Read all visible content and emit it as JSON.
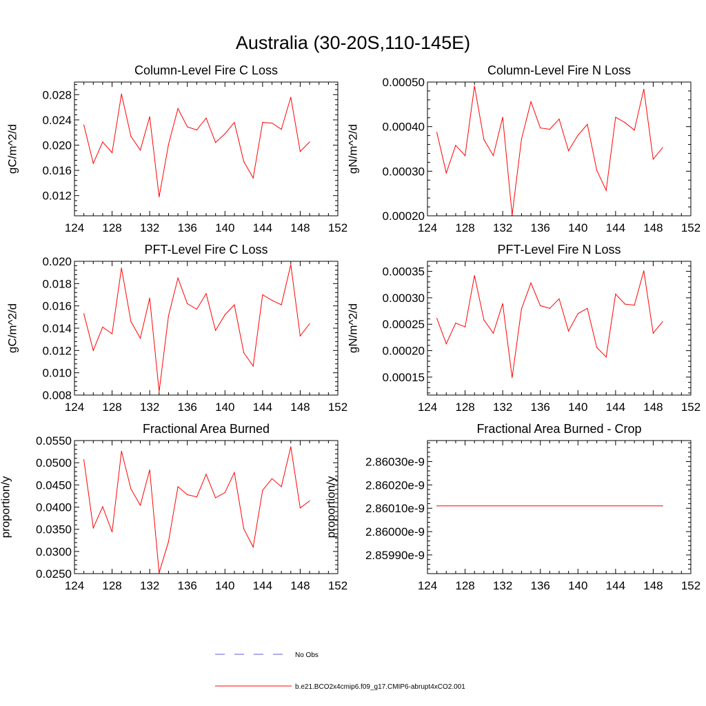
{
  "figure": {
    "title": "Australia (30-20S,110-145E)"
  },
  "legend": {
    "entries": [
      {
        "label": "No Obs",
        "color": "#5b5bd6",
        "style": "dashed"
      },
      {
        "label": "b.e21.BCO2x4cmip6.f09_g17.CMIP6-abrupt4xCO2.001",
        "color": "#ff0000",
        "style": "solid"
      }
    ]
  },
  "chart_data": [
    {
      "type": "line",
      "title": "Column-Level Fire C Loss",
      "ylabel": "gC/m^2/d",
      "xlim": [
        124,
        152
      ],
      "ylim": [
        0.0088,
        0.03
      ],
      "xticks": [
        124,
        128,
        132,
        136,
        140,
        144,
        148,
        152
      ],
      "xtick_labels": [
        "124",
        "128",
        "132",
        "136",
        "140",
        "144",
        "148",
        "152"
      ],
      "yticks": [
        0.012,
        0.016,
        0.02,
        0.024,
        0.028
      ],
      "ytick_labels": [
        "0.012",
        "0.016",
        "0.020",
        "0.024",
        "0.028"
      ],
      "series": [
        {
          "name": "b.e21.BCO2x4cmip6.f09_g17.CMIP6-abrupt4xCO2.001",
          "color": "#ff0000",
          "x": [
            125,
            126,
            127,
            128,
            129,
            130,
            131,
            132,
            133,
            134,
            135,
            136,
            137,
            138,
            139,
            140,
            141,
            142,
            143,
            144,
            145,
            146,
            147,
            148,
            149
          ],
          "values": [
            0.0232,
            0.0171,
            0.0205,
            0.0188,
            0.0281,
            0.0214,
            0.0192,
            0.0245,
            0.0118,
            0.0201,
            0.0258,
            0.0229,
            0.0224,
            0.0243,
            0.0204,
            0.0218,
            0.0236,
            0.0174,
            0.0148,
            0.0236,
            0.0235,
            0.0225,
            0.0276,
            0.019,
            0.0205
          ]
        }
      ]
    },
    {
      "type": "line",
      "title": "Column-Level Fire N Loss",
      "ylabel": "gN/m^2/d",
      "xlim": [
        124,
        152
      ],
      "ylim": [
        0.0002,
        0.0005
      ],
      "xticks": [
        124,
        128,
        132,
        136,
        140,
        144,
        148,
        152
      ],
      "xtick_labels": [
        "124",
        "128",
        "132",
        "136",
        "140",
        "144",
        "148",
        "152"
      ],
      "yticks": [
        0.0002,
        0.0003,
        0.0004,
        0.0005
      ],
      "ytick_labels": [
        "0.00020",
        "0.00030",
        "0.00040",
        "0.00050"
      ],
      "series": [
        {
          "name": "b.e21.BCO2x4cmip6.f09_g17.CMIP6-abrupt4xCO2.001",
          "color": "#ff0000",
          "x": [
            125,
            126,
            127,
            128,
            129,
            130,
            131,
            132,
            133,
            134,
            135,
            136,
            137,
            138,
            139,
            140,
            141,
            142,
            143,
            144,
            145,
            146,
            147,
            148,
            149
          ],
          "values": [
            0.000387,
            0.000296,
            0.000358,
            0.000335,
            0.000491,
            0.000371,
            0.000335,
            0.000421,
            0.000202,
            0.000372,
            0.000456,
            0.000397,
            0.000394,
            0.000417,
            0.000346,
            0.000381,
            0.000405,
            0.000302,
            0.000257,
            0.000421,
            0.000409,
            0.000392,
            0.000484,
            0.000327,
            0.000353
          ]
        }
      ]
    },
    {
      "type": "line",
      "title": "PFT-Level Fire C Loss",
      "ylabel": "gC/m^2/d",
      "xlim": [
        124,
        152
      ],
      "ylim": [
        0.008,
        0.02
      ],
      "xticks": [
        124,
        128,
        132,
        136,
        140,
        144,
        148,
        152
      ],
      "xtick_labels": [
        "124",
        "128",
        "132",
        "136",
        "140",
        "144",
        "148",
        "152"
      ],
      "yticks": [
        0.008,
        0.01,
        0.012,
        0.014,
        0.016,
        0.018,
        0.02
      ],
      "ytick_labels": [
        "0.008",
        "0.010",
        "0.012",
        "0.014",
        "0.016",
        "0.018",
        "0.020"
      ],
      "series": [
        {
          "name": "b.e21.BCO2x4cmip6.f09_g17.CMIP6-abrupt4xCO2.001",
          "color": "#ff0000",
          "x": [
            125,
            126,
            127,
            128,
            129,
            130,
            131,
            132,
            133,
            134,
            135,
            136,
            137,
            138,
            139,
            140,
            141,
            142,
            143,
            144,
            145,
            146,
            147,
            148,
            149
          ],
          "values": [
            0.0153,
            0.012,
            0.0141,
            0.0135,
            0.0194,
            0.0146,
            0.0131,
            0.0167,
            0.0083,
            0.0151,
            0.0185,
            0.0162,
            0.0157,
            0.0171,
            0.0138,
            0.0152,
            0.0161,
            0.0118,
            0.0106,
            0.017,
            0.0165,
            0.0161,
            0.0197,
            0.0133,
            0.0144
          ]
        }
      ]
    },
    {
      "type": "line",
      "title": "PFT-Level Fire N Loss",
      "ylabel": "gN/m^2/d",
      "xlim": [
        124,
        152
      ],
      "ylim": [
        0.000116,
        0.000369
      ],
      "xticks": [
        124,
        128,
        132,
        136,
        140,
        144,
        148,
        152
      ],
      "xtick_labels": [
        "124",
        "128",
        "132",
        "136",
        "140",
        "144",
        "148",
        "152"
      ],
      "yticks": [
        0.00015,
        0.0002,
        0.00025,
        0.0003,
        0.00035
      ],
      "ytick_labels": [
        "0.00015",
        "0.00020",
        "0.00025",
        "0.00030",
        "0.00035"
      ],
      "series": [
        {
          "name": "b.e21.BCO2x4cmip6.f09_g17.CMIP6-abrupt4xCO2.001",
          "color": "#ff0000",
          "x": [
            125,
            126,
            127,
            128,
            129,
            130,
            131,
            132,
            133,
            134,
            135,
            136,
            137,
            138,
            139,
            140,
            141,
            142,
            143,
            144,
            145,
            146,
            147,
            148,
            149
          ],
          "values": [
            0.000261,
            0.000213,
            0.000252,
            0.000245,
            0.000342,
            0.000258,
            0.000233,
            0.000289,
            0.000149,
            0.000279,
            0.000328,
            0.000285,
            0.00028,
            0.000298,
            0.000237,
            0.00027,
            0.00028,
            0.000206,
            0.000188,
            0.000307,
            0.000288,
            0.000286,
            0.000351,
            0.000233,
            0.000255
          ]
        }
      ]
    },
    {
      "type": "line",
      "title": "Fractional Area Burned",
      "ylabel": "proportion/y",
      "xlim": [
        124,
        152
      ],
      "ylim": [
        0.025,
        0.055
      ],
      "xticks": [
        124,
        128,
        132,
        136,
        140,
        144,
        148,
        152
      ],
      "xtick_labels": [
        "124",
        "128",
        "132",
        "136",
        "140",
        "144",
        "148",
        "152"
      ],
      "yticks": [
        0.025,
        0.03,
        0.035,
        0.04,
        0.045,
        0.05,
        0.055
      ],
      "ytick_labels": [
        "0.0250",
        "0.0300",
        "0.0350",
        "0.0400",
        "0.0450",
        "0.0500",
        "0.0550"
      ],
      "series": [
        {
          "name": "b.e21.BCO2x4cmip6.f09_g17.CMIP6-abrupt4xCO2.001",
          "color": "#ff0000",
          "x": [
            125,
            126,
            127,
            128,
            129,
            130,
            131,
            132,
            133,
            134,
            135,
            136,
            137,
            138,
            139,
            140,
            141,
            142,
            143,
            144,
            145,
            146,
            147,
            148,
            149
          ],
          "values": [
            0.0507,
            0.0353,
            0.0401,
            0.0344,
            0.0526,
            0.0441,
            0.0404,
            0.0484,
            0.0252,
            0.0322,
            0.0446,
            0.0428,
            0.0423,
            0.0474,
            0.0421,
            0.0433,
            0.0478,
            0.0351,
            0.031,
            0.0438,
            0.0464,
            0.0446,
            0.0536,
            0.0398,
            0.0414
          ]
        }
      ]
    },
    {
      "type": "line",
      "title": "Fractional Area Burned - Crop",
      "ylabel": "proportion/y",
      "xlim": [
        124,
        152
      ],
      "ylim": [
        2.85982e-09,
        2.86039e-09
      ],
      "xticks": [
        124,
        128,
        132,
        136,
        140,
        144,
        148,
        152
      ],
      "xtick_labels": [
        "124",
        "128",
        "132",
        "136",
        "140",
        "144",
        "148",
        "152"
      ],
      "yticks": [
        2.8599e-09,
        2.86e-09,
        2.8601e-09,
        2.8602e-09,
        2.8603e-09
      ],
      "ytick_labels": [
        "2.85990e-9",
        "2.86000e-9",
        "2.86010e-9",
        "2.86020e-9",
        "2.86030e-9"
      ],
      "series": [
        {
          "name": "b.e21.BCO2x4cmip6.f09_g17.CMIP6-abrupt4xCO2.001",
          "color": "#ff0000",
          "x": [
            125,
            149
          ],
          "values": [
            2.86011e-09,
            2.86011e-09
          ]
        }
      ]
    }
  ]
}
